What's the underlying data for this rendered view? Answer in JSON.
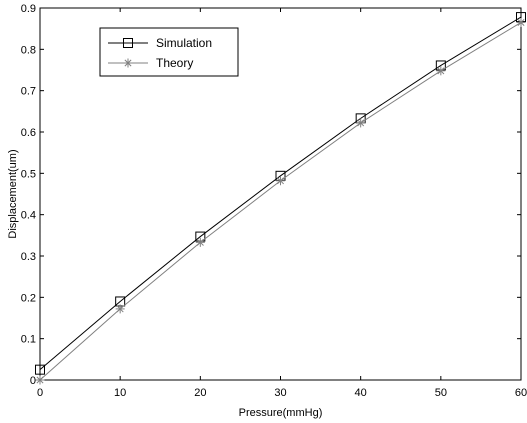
{
  "chart_data": {
    "type": "line",
    "xlabel": "Pressure(mmHg)",
    "ylabel": "Displacement(um)",
    "xlim": [
      0,
      60
    ],
    "ylim": [
      0,
      0.9
    ],
    "xticks": [
      0,
      10,
      20,
      30,
      40,
      50,
      60
    ],
    "xtick_labels": [
      "0",
      "10",
      "20",
      "30",
      "40",
      "50",
      "60"
    ],
    "yticks": [
      0,
      0.1,
      0.2,
      0.3,
      0.4,
      0.5,
      0.6,
      0.7,
      0.8,
      0.9
    ],
    "ytick_labels": [
      "0",
      "0.1",
      "0.2",
      "0.3",
      "0.4",
      "0.5",
      "0.6",
      "0.7",
      "0.8",
      "0.9"
    ],
    "grid": false,
    "legend_position": "top-left",
    "series": [
      {
        "name": "Simulation",
        "marker": "square",
        "color": "#000000",
        "x": [
          0,
          10,
          20,
          30,
          40,
          50,
          60
        ],
        "y": [
          0.025,
          0.19,
          0.347,
          0.494,
          0.633,
          0.761,
          0.878
        ]
      },
      {
        "name": "Theory",
        "marker": "star",
        "color": "#808080",
        "x": [
          0,
          10,
          20,
          30,
          40,
          50,
          60
        ],
        "y": [
          0,
          0.172,
          0.333,
          0.482,
          0.622,
          0.748,
          0.865
        ]
      }
    ]
  }
}
